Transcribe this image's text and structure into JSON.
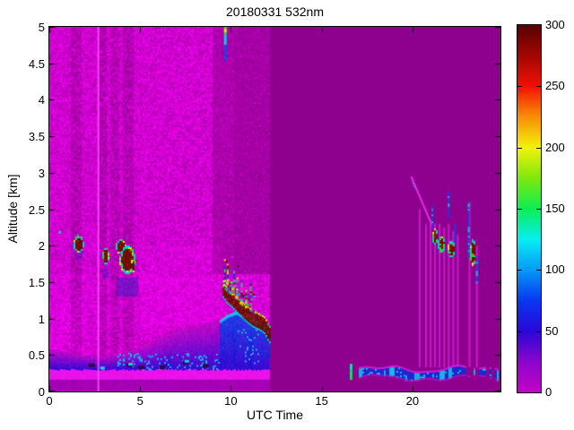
{
  "figure": {
    "title": "20180331 532nm",
    "xlabel": "UTC Time",
    "ylabel": "Altitude [km]"
  },
  "chart_data": {
    "type": "heatmap",
    "title": "20180331 532nm",
    "xlabel": "UTC Time",
    "ylabel": "Altitude [km]",
    "xlim": [
      0,
      24.85
    ],
    "ylim": [
      0,
      5
    ],
    "xticks": [
      0,
      5,
      10,
      15,
      20
    ],
    "yticks": [
      0,
      0.5,
      1,
      1.5,
      2,
      2.5,
      3,
      3.5,
      4,
      4.5,
      5
    ],
    "grid": false,
    "colorbar": {
      "min": 0,
      "max": 300,
      "ticks": [
        0,
        50,
        100,
        150,
        200,
        250,
        300
      ],
      "stops": [
        [
          0,
          "#C303C3"
        ],
        [
          25,
          "#8A06CE"
        ],
        [
          50,
          "#2B07D8"
        ],
        [
          75,
          "#0837F2"
        ],
        [
          100,
          "#0798F8"
        ],
        [
          125,
          "#06EFEF"
        ],
        [
          150,
          "#0BEE55"
        ],
        [
          175,
          "#7FE80B"
        ],
        [
          200,
          "#F2F20A"
        ],
        [
          225,
          "#F98E06"
        ],
        [
          250,
          "#F31005"
        ],
        [
          275,
          "#A30603"
        ],
        [
          300,
          "#560101"
        ]
      ]
    },
    "scene": {
      "background_value_color": "#8E018E",
      "daytime": {
        "t": [
          0,
          12.12
        ],
        "base_rgb": [
          208,
          0,
          208
        ],
        "speckle": 26,
        "dark_bands": [
          {
            "t": [
              1.15,
              1.8
            ],
            "factor": 0.88
          },
          {
            "t": [
              2.72,
              3.2
            ],
            "factor": 0.87
          },
          {
            "t": [
              3.33,
              3.9
            ],
            "factor": 0.89
          },
          {
            "t": [
              4.02,
              4.6
            ],
            "factor": 0.87
          }
        ],
        "dim_upper": {
          "t": [
            9.0,
            12.12
          ],
          "alt_above": 1.6,
          "factor": 0.84
        }
      },
      "surface_band": {
        "t": [
          0,
          12.12
        ],
        "alt": [
          0,
          0.17
        ],
        "rgb": [
          163,
          2,
          180
        ]
      },
      "pink_band": {
        "t": [
          0,
          12.12
        ],
        "alt": [
          0.17,
          0.31
        ],
        "rgb": [
          238,
          20,
          238
        ]
      },
      "boundary_layer": {
        "t_range": [
          0,
          9.45
        ],
        "base_alt": 0.31,
        "top_profile": [
          [
            0,
            0.58
          ],
          [
            1,
            0.54
          ],
          [
            2,
            0.5
          ],
          [
            3,
            0.48
          ],
          [
            4,
            0.52
          ],
          [
            5,
            0.61
          ],
          [
            6,
            0.73
          ],
          [
            7,
            0.85
          ],
          [
            8,
            0.92
          ],
          [
            9,
            0.96
          ],
          [
            9.4,
            1.0
          ]
        ],
        "blue_rgb": [
          42,
          10,
          216
        ],
        "magenta_rgb": [
          196,
          10,
          200
        ],
        "cyan_rgb": [
          14,
          185,
          232
        ],
        "dark_specks": [
          [
            2.3,
            0.36
          ],
          [
            4.4,
            0.36
          ],
          [
            5.05,
            0.33
          ],
          [
            6.2,
            0.33
          ],
          [
            7.5,
            0.4
          ],
          [
            8.6,
            0.35
          ]
        ],
        "cyan_specks": [
          [
            2.9,
            0.33
          ],
          [
            4.45,
            0.38
          ],
          [
            7.55,
            0.42
          ]
        ]
      },
      "cloud_hump": {
        "t": [
          9.4,
          12.12
        ],
        "top_profile": [
          [
            9.4,
            0.98
          ],
          [
            9.8,
            1.05
          ],
          [
            10.3,
            1.1
          ],
          [
            10.8,
            1.04
          ],
          [
            11.3,
            0.99
          ],
          [
            11.7,
            0.94
          ],
          [
            12.12,
            0.84
          ]
        ],
        "arc_center": [
          [
            9.55,
            1.38
          ],
          [
            9.8,
            1.3
          ],
          [
            10.1,
            1.24
          ],
          [
            10.45,
            1.16
          ],
          [
            10.8,
            1.08
          ],
          [
            11.2,
            1.0
          ],
          [
            11.6,
            0.95
          ],
          [
            11.9,
            0.9
          ],
          [
            12.12,
            0.78
          ]
        ],
        "maroon_rgb": [
          90,
          12,
          0
        ],
        "spike_ts": [
          9.62,
          9.78,
          9.95,
          10.12,
          10.3,
          10.55,
          10.8,
          11.05
        ]
      },
      "left_blobs": [
        {
          "cx": 1.62,
          "cy": 2.02,
          "rx": 0.27,
          "ry": 0.12
        },
        {
          "cx": 3.12,
          "cy": 1.86,
          "rx": 0.17,
          "ry": 0.12
        },
        {
          "cx": 3.95,
          "cy": 1.98,
          "rx": 0.28,
          "ry": 0.1
        },
        {
          "cx": 4.3,
          "cy": 1.8,
          "rx": 0.42,
          "ry": 0.2
        },
        {
          "cx": 4.62,
          "cy": 1.72,
          "rx": 0.12,
          "ry": 0.1
        }
      ],
      "blue_shadows": [
        {
          "t": [
            3.7,
            4.9
          ],
          "alt": [
            1.3,
            1.56
          ],
          "alpha": 0.5
        },
        {
          "t": [
            2.95,
            3.3
          ],
          "alt": [
            1.55,
            1.7
          ],
          "alpha": 0.35
        },
        {
          "t": [
            1.4,
            1.85
          ],
          "alt": [
            1.82,
            1.93
          ],
          "alpha": 0.3
        }
      ],
      "bright_line_t": 2.65,
      "top_streak": {
        "t": 9.62,
        "alt": [
          4.55,
          5.0
        ]
      },
      "cirrus_speck": {
        "t": 0.5,
        "alt": 2.2
      },
      "night": {
        "diagonal_streak": {
          "from": [
            19.9,
            2.95
          ],
          "to": [
            21.05,
            2.28
          ]
        },
        "pink_streak_ts": [
          20.35,
          20.7,
          20.95,
          21.2,
          21.45,
          21.7,
          21.95,
          22.2,
          22.45,
          23.1,
          23.5
        ],
        "streak_alt_top": [
          2.5,
          2.3,
          2.35,
          2.3,
          2.3,
          2.25,
          2.3,
          2.2,
          2.15,
          2.6,
          2.0
        ],
        "streak_alt_bot": 0.33,
        "blobs": [
          {
            "cx": 21.25,
            "cy": 2.12,
            "rx": 0.14,
            "ry": 0.11
          },
          {
            "cx": 21.6,
            "cy": 2.02,
            "rx": 0.19,
            "ry": 0.12
          },
          {
            "cx": 22.15,
            "cy": 1.95,
            "rx": 0.19,
            "ry": 0.11
          },
          {
            "cx": 23.35,
            "cy": 1.9,
            "rx": 0.16,
            "ry": 0.18
          }
        ],
        "blue_dashes": [
          {
            "t": 21.05,
            "alt": [
              2.25,
              2.55
            ]
          },
          {
            "t": 21.95,
            "alt": [
              2.4,
              2.75
            ]
          },
          {
            "t": 22.3,
            "alt": [
              2.05,
              2.3
            ]
          },
          {
            "t": 23.05,
            "alt": [
              1.85,
              2.6
            ]
          },
          {
            "t": 23.5,
            "alt": [
              1.5,
              1.85
            ]
          }
        ],
        "low_layer": {
          "t": [
            17.05,
            24.7
          ],
          "gap_t": [
            22.95,
            23.3
          ],
          "center_alt": 0.245,
          "halfwidth": 0.05
        },
        "green_tick": {
          "t": 16.55,
          "alt": [
            0.18,
            0.38
          ]
        }
      }
    }
  }
}
